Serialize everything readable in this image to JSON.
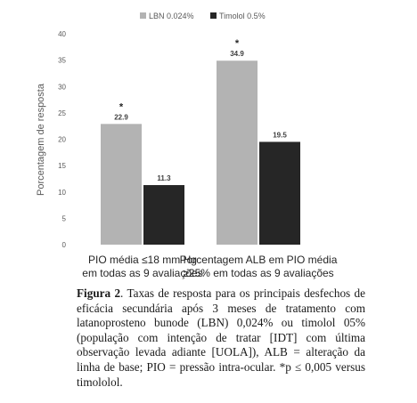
{
  "chart_data": {
    "type": "bar",
    "categories": [
      [
        "PIO média ≤18 mm Hg",
        "em todas as 9 avaliações"
      ],
      [
        "Porcentagem ALB em PIO média",
        "≥25% em todas as 9 avaliações"
      ]
    ],
    "series": [
      {
        "name": "LBN 0.024%",
        "values": [
          22.9,
          34.9
        ],
        "labels": [
          "22.9",
          "34.9"
        ],
        "color": "#b3b3b3"
      },
      {
        "name": "Timolol 0.5%",
        "values": [
          11.3,
          19.5
        ],
        "labels": [
          "11.3",
          "19.5"
        ],
        "color": "#262626"
      }
    ],
    "significance": [
      {
        "category": 0,
        "series": 0,
        "mark": "*"
      },
      {
        "category": 1,
        "series": 0,
        "mark": "*"
      }
    ],
    "ylabel": "Porcentagem de resposta",
    "xlabel": "",
    "ylim": [
      0,
      40
    ],
    "yticks": [
      "0",
      "5",
      "10",
      "15",
      "20",
      "25",
      "30",
      "35",
      "40"
    ],
    "legend_position": "top",
    "grid": false
  },
  "caption": {
    "label": "Figura 2",
    "text": ". Taxas de resposta para os principais desfechos de eficácia secundária após 3 meses de tratamento com latanoprosteno bunode (LBN) 0,024% ou timolol 05% (população com intenção de tratar [IDT] com última observação levada adiante [UOLA]), ALB = alteração da linha de base; PIO = pressão intra-ocular. *p ≤ 0,005 versus timololol."
  }
}
